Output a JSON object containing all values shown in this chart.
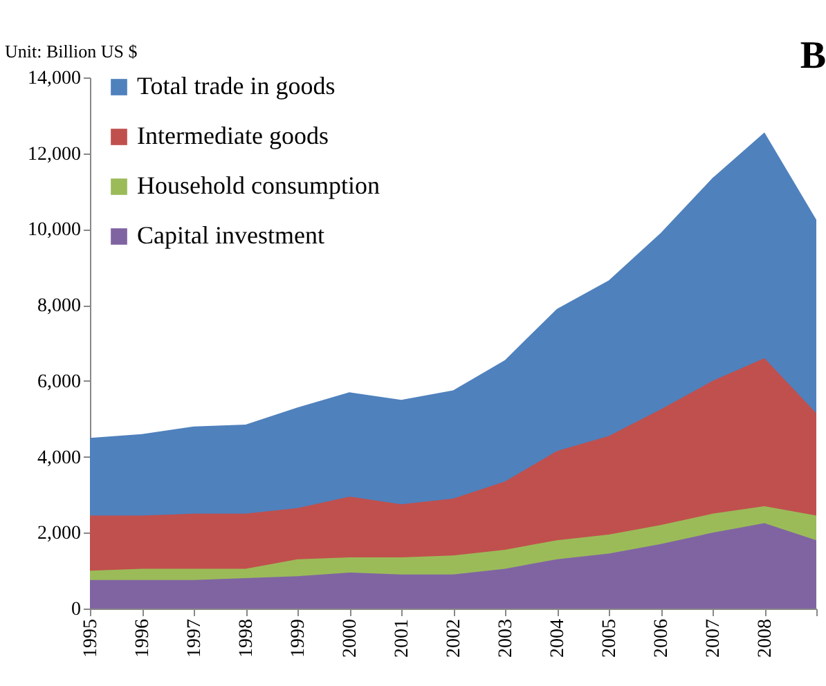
{
  "chart_data": {
    "type": "area",
    "title": "B",
    "ylabel": "Unit: Billion US $",
    "categories": [
      "1995",
      "1996",
      "1997",
      "1998",
      "1999",
      "2000",
      "2001",
      "2002",
      "2003",
      "2004",
      "2005",
      "2006",
      "2007",
      "2008",
      null
    ],
    "series": [
      {
        "name": "Total trade in goods",
        "color": "#4f81bd",
        "values": [
          4500,
          4600,
          4800,
          4850,
          5300,
          5700,
          5500,
          5750,
          6550,
          7900,
          8650,
          9900,
          11350,
          12550,
          10250
        ]
      },
      {
        "name": "Intermediate goods",
        "color": "#c0504d",
        "values": [
          2450,
          2450,
          2500,
          2500,
          2650,
          2950,
          2750,
          2900,
          3350,
          4150,
          4550,
          5250,
          6000,
          6600,
          5150
        ]
      },
      {
        "name": "Household consumption",
        "color": "#9bbb59",
        "values": [
          1000,
          1050,
          1050,
          1050,
          1300,
          1350,
          1350,
          1400,
          1550,
          1800,
          1950,
          2200,
          2500,
          2700,
          2450
        ]
      },
      {
        "name": "Capital investment",
        "color": "#8064a2",
        "values": [
          750,
          750,
          750,
          800,
          850,
          950,
          900,
          900,
          1050,
          1300,
          1450,
          1700,
          2000,
          2250,
          1800
        ]
      }
    ],
    "ylim": [
      0,
      14000
    ],
    "yticks": [
      0,
      {
        "value": 2000,
        "label": "2,000"
      },
      {
        "value": 4000,
        "label": "4,000"
      },
      {
        "value": 6000,
        "label": "6,000"
      },
      {
        "value": 8000,
        "label": "8,000"
      },
      {
        "value": 10000,
        "label": "10,000"
      },
      {
        "value": 12000,
        "label": "12,000"
      },
      {
        "value": 14000,
        "label": "14,000"
      }
    ],
    "legend": "top left",
    "grid": false
  }
}
